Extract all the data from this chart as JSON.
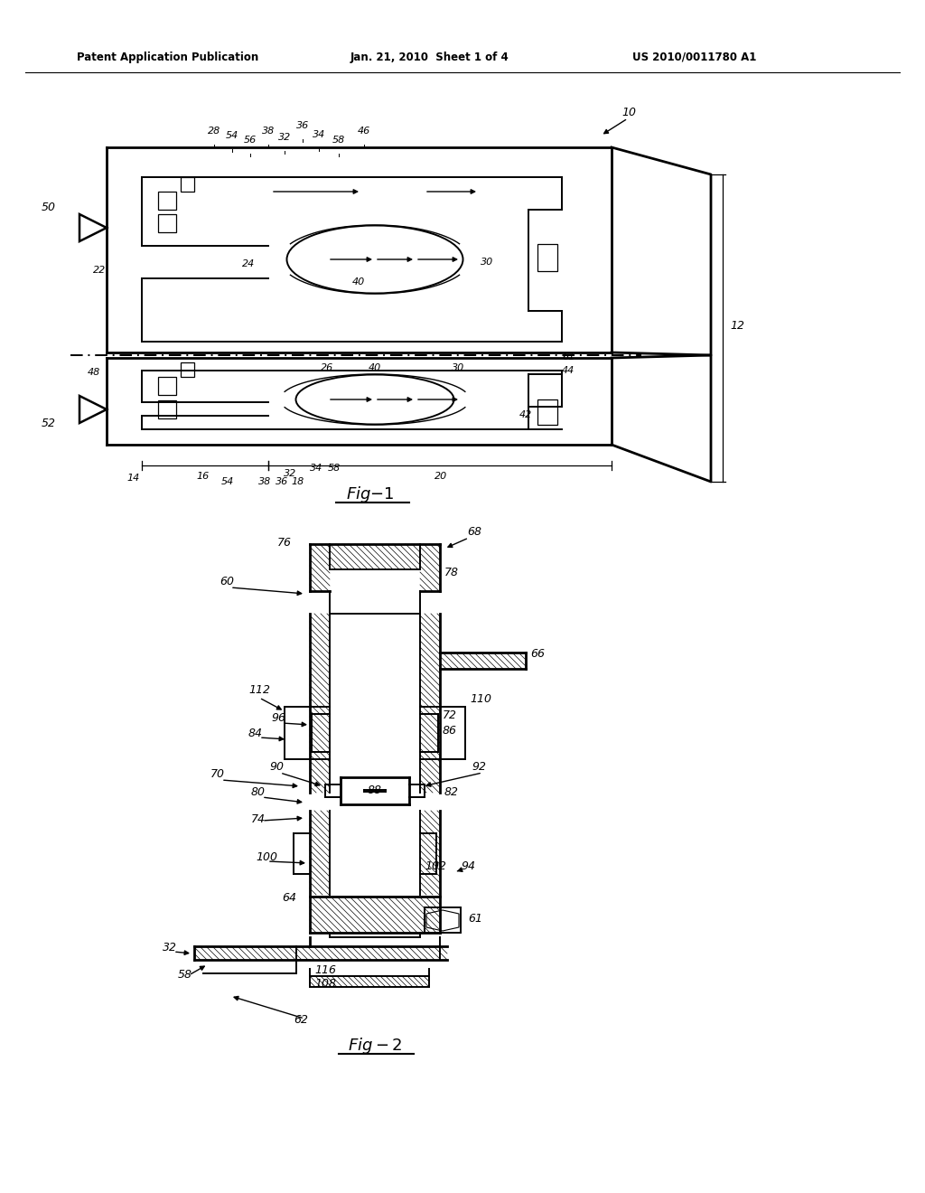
{
  "bg_color": "#ffffff",
  "lc": "#000000",
  "header_left": "Patent Application Publication",
  "header_center": "Jan. 21, 2010  Sheet 1 of 4",
  "header_right": "US 2010/0011780 A1",
  "fig1_label": "Fig-1",
  "fig2_label": "Fig-2",
  "lw_thick": 2.0,
  "lw_med": 1.4,
  "lw_thin": 0.9
}
